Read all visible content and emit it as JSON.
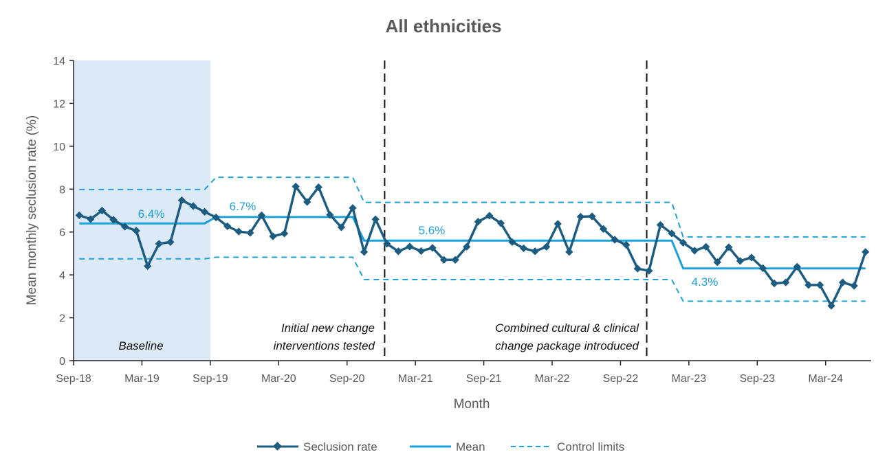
{
  "chart_data": {
    "type": "line",
    "title": "All ethnicities",
    "xlabel": "Month",
    "ylabel": "Mean monthly seclusion rate (%)",
    "ylim": [
      0,
      14
    ],
    "yticks": [
      0,
      2,
      4,
      6,
      8,
      10,
      12,
      14
    ],
    "grid": false,
    "legend_position": "bottom",
    "categories": [
      "Sep-18",
      "Oct-18",
      "Nov-18",
      "Dec-18",
      "Jan-19",
      "Feb-19",
      "Mar-19",
      "Apr-19",
      "May-19",
      "Jun-19",
      "Jul-19",
      "Aug-19",
      "Sep-19",
      "Oct-19",
      "Nov-19",
      "Dec-19",
      "Jan-20",
      "Feb-20",
      "Mar-20",
      "Apr-20",
      "May-20",
      "Jun-20",
      "Jul-20",
      "Aug-20",
      "Sep-20",
      "Oct-20",
      "Nov-20",
      "Dec-20",
      "Jan-21",
      "Feb-21",
      "Mar-21",
      "Apr-21",
      "May-21",
      "Jun-21",
      "Jul-21",
      "Aug-21",
      "Sep-21",
      "Oct-21",
      "Nov-21",
      "Dec-21",
      "Jan-22",
      "Feb-22",
      "Mar-22",
      "Apr-22",
      "May-22",
      "Jun-22",
      "Jul-22",
      "Aug-22",
      "Sep-22",
      "Oct-22",
      "Nov-22",
      "Dec-22",
      "Jan-23",
      "Feb-23",
      "Mar-23",
      "Apr-23",
      "May-23",
      "Jun-23",
      "Jul-23",
      "Aug-23",
      "Sep-23",
      "Oct-23",
      "Nov-23",
      "Dec-23",
      "Jan-24",
      "Feb-24",
      "Mar-24",
      "Apr-24",
      "May-24",
      "Jun-24"
    ],
    "xtick_labels": [
      "Sep-18",
      "Mar-19",
      "Sep-19",
      "Mar-20",
      "Sep-20",
      "Mar-21",
      "Sep-21",
      "Mar-22",
      "Sep-22",
      "Mar-23",
      "Sep-23",
      "Mar-24"
    ],
    "series": [
      {
        "name": "Seclusion rate",
        "color": "#1b5c80",
        "marker": "diamond",
        "values": [
          6.78,
          6.6,
          7.0,
          6.57,
          6.25,
          6.06,
          4.41,
          5.45,
          5.53,
          7.48,
          7.21,
          6.94,
          6.68,
          6.27,
          6.02,
          5.96,
          6.78,
          5.8,
          5.93,
          8.12,
          7.4,
          8.09,
          6.8,
          6.22,
          7.12,
          5.07,
          6.59,
          5.45,
          5.1,
          5.32,
          5.11,
          5.26,
          4.7,
          4.7,
          5.31,
          6.48,
          6.76,
          6.41,
          5.53,
          5.24,
          5.1,
          5.31,
          6.38,
          5.07,
          6.71,
          6.73,
          6.14,
          5.64,
          5.4,
          4.29,
          4.19,
          6.33,
          5.93,
          5.5,
          5.13,
          5.31,
          4.59,
          5.29,
          4.65,
          4.81,
          4.31,
          3.6,
          3.65,
          4.38,
          3.53,
          3.53,
          2.56,
          3.65,
          3.49,
          5.07
        ]
      }
    ],
    "phases": [
      {
        "from": "Sep-18",
        "to": "Aug-19",
        "mean": 6.4,
        "ucl": 7.98,
        "lcl": 4.75,
        "mean_label": "6.4%",
        "label": "Baseline",
        "shaded": true
      },
      {
        "from": "Sep-19",
        "to": "Sep-20",
        "mean": 6.7,
        "ucl": 8.55,
        "lcl": 4.82,
        "mean_label": "6.7%",
        "label": "Initial new change interventions tested"
      },
      {
        "from": "Oct-20",
        "to": "Jan-23",
        "mean": 5.6,
        "ucl": 7.38,
        "lcl": 3.78,
        "mean_label": "5.6%",
        "label": "Combined cultural & clinical change package introduced"
      },
      {
        "from": "Feb-23",
        "to": "Jun-24",
        "mean": 4.3,
        "ucl": 5.77,
        "lcl": 2.77,
        "mean_label": "4.3%"
      }
    ],
    "annotations": {
      "baseline": "Baseline",
      "phase2_line1": "Initial new change",
      "phase2_line2": "interventions tested",
      "phase3_line1": "Combined cultural & clinical",
      "phase3_line2": "change package introduced"
    },
    "intervention_lines_at": [
      "Dec-20",
      "Nov-22"
    ],
    "mean_color": "#1ba1d8",
    "control_limit_color": "#1ba1d8",
    "baseline_shade_color": "#dce9f6",
    "legend": [
      {
        "label": "Seclusion rate",
        "style": "line-with-diamond",
        "color": "#1b5c80"
      },
      {
        "label": "Mean",
        "style": "solid",
        "color": "#1ba1d8"
      },
      {
        "label": "Control limits",
        "style": "dashed",
        "color": "#1ba1d8"
      }
    ]
  }
}
